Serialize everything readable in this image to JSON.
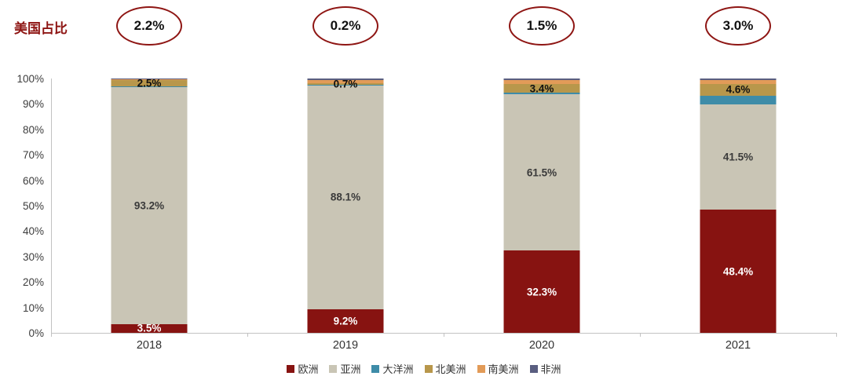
{
  "page": {
    "background": "#ffffff"
  },
  "header": {
    "title": "美国占比",
    "title_color": "#8e1513",
    "circle_border_color": "#8e1513",
    "us_share_circles": [
      {
        "year": "2018",
        "value": "2.2%"
      },
      {
        "year": "2019",
        "value": "0.2%"
      },
      {
        "year": "2020",
        "value": "1.5%"
      },
      {
        "year": "2021",
        "value": "3.0%"
      }
    ]
  },
  "chart_data": {
    "type": "bar",
    "stacked": true,
    "percent_stacked": true,
    "title": "",
    "xlabel": "",
    "ylabel": "",
    "ylim": [
      0,
      100
    ],
    "grid": false,
    "legend_position": "bottom",
    "categories": [
      "2018",
      "2019",
      "2020",
      "2021"
    ],
    "y_ticks": [
      "0%",
      "10%",
      "20%",
      "30%",
      "40%",
      "50%",
      "60%",
      "70%",
      "80%",
      "90%",
      "100%"
    ],
    "unlabeled_segments_estimated": true,
    "series": [
      {
        "name": "欧洲",
        "key": "europe",
        "color": "#871311",
        "values": [
          3.5,
          9.2,
          32.3,
          48.4
        ],
        "labels": [
          "3.5%",
          "9.2%",
          "32.3%",
          "48.4%"
        ],
        "label_color": "#ffffff"
      },
      {
        "name": "亚洲",
        "key": "asia",
        "color": "#c9c5b5",
        "values": [
          93.2,
          88.1,
          61.5,
          41.5
        ],
        "labels": [
          "93.2%",
          "88.1%",
          "61.5%",
          "41.5%"
        ],
        "label_color": "#3a3a3a"
      },
      {
        "name": "大洋洲",
        "key": "oceania",
        "color": "#3e8ca8",
        "values": [
          0.1,
          0.1,
          0.6,
          3.4
        ],
        "labels": null,
        "label_color": null
      },
      {
        "name": "北美洲",
        "key": "north-america",
        "color": "#b8974b",
        "values": [
          2.5,
          0.7,
          3.4,
          4.6
        ],
        "labels": [
          "2.5%",
          "0.7%",
          "3.4%",
          "4.6%"
        ],
        "label_color": "#111111"
      },
      {
        "name": "南美洲",
        "key": "south-america",
        "color": "#e29b58",
        "values": [
          0.5,
          1.4,
          1.7,
          1.5
        ],
        "labels": null,
        "label_color": null
      },
      {
        "name": "非洲",
        "key": "africa",
        "color": "#5a5e80",
        "values": [
          0.2,
          0.5,
          0.5,
          0.6
        ],
        "labels": null,
        "label_color": null
      }
    ]
  }
}
